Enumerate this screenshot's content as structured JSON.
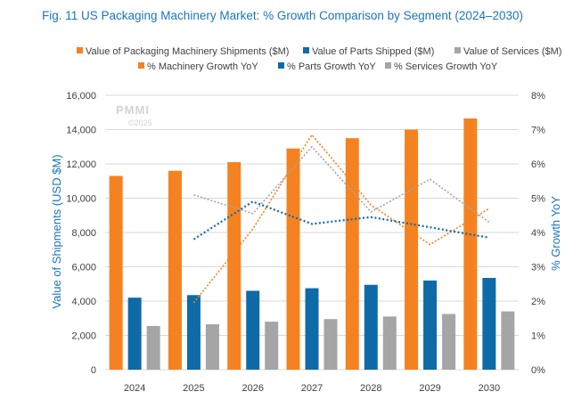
{
  "chart_data": {
    "type": "bar",
    "title": "Fig. 11 US Packaging Machinery Market: % Growth Comparison by Segment (2024–2030)",
    "categories": [
      "2024",
      "2025",
      "2026",
      "2027",
      "2028",
      "2029",
      "2030"
    ],
    "ylabel": "Value of Shipments  (USD $M)",
    "y2label": "% Growth YoY",
    "ylim": [
      0,
      16000
    ],
    "y_ticks": [
      "0",
      "2,000",
      "4,000",
      "6,000",
      "8,000",
      "10,000",
      "12,000",
      "14,000",
      "16,000"
    ],
    "y2lim": [
      0,
      8
    ],
    "y2_ticks": [
      "0%",
      "1%",
      "2%",
      "3%",
      "4%",
      "5%",
      "6%",
      "7%",
      "8%"
    ],
    "grid": true,
    "legend_position": "top",
    "watermark": {
      "logo": "PMMI",
      "text": "©2025"
    },
    "bar_series": [
      {
        "name": "Value of Packaging Machinery Shipments ($M)",
        "color": "#f58220",
        "values": [
          11300,
          11600,
          12100,
          12900,
          13500,
          14000,
          14650
        ]
      },
      {
        "name": "Value of Parts Shipped ($M)",
        "color": "#0f6aa8",
        "values": [
          4200,
          4350,
          4600,
          4750,
          4950,
          5200,
          5350
        ]
      },
      {
        "name": "Value of Services ($M)",
        "color": "#a5a5a5",
        "values": [
          2550,
          2650,
          2800,
          2950,
          3100,
          3250,
          3400
        ]
      }
    ],
    "line_series": [
      {
        "name": "% Machinery Growth YoY",
        "color": "#f58220",
        "x": [
          "2025",
          "2026",
          "2027",
          "2028",
          "2029",
          "2030"
        ],
        "values": [
          1.95,
          4.1,
          6.85,
          4.8,
          3.65,
          4.7
        ]
      },
      {
        "name": "% Parts Growth YoY",
        "color": "#0f6aa8",
        "x": [
          "2025",
          "2026",
          "2027",
          "2028",
          "2029",
          "2030"
        ],
        "values": [
          3.8,
          4.9,
          4.25,
          4.45,
          4.15,
          3.85
        ]
      },
      {
        "name": "% Services Growth YoY",
        "color": "#a5a5a5",
        "x": [
          "2025",
          "2026",
          "2027",
          "2028",
          "2029",
          "2030"
        ],
        "values": [
          5.1,
          4.55,
          6.5,
          4.6,
          5.55,
          4.3
        ]
      }
    ]
  }
}
